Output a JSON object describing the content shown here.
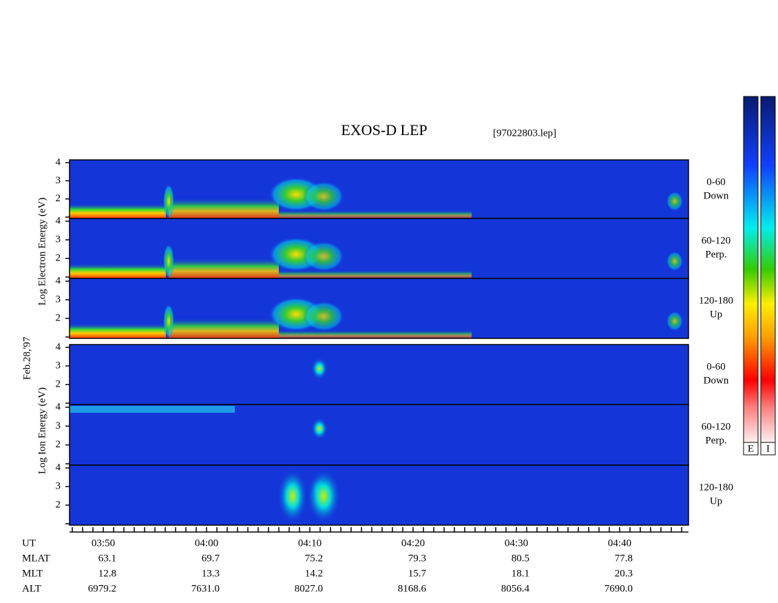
{
  "title": "EXOS-D LEP",
  "file": "[97022803.lep]",
  "electron_label": "Log Electron Energy (eV)",
  "date": "Feb.28,'97",
  "ion_label": "Log Ion Energy (eV)",
  "panels": [
    {
      "group": "electron",
      "lines": [
        "0-60",
        "Down"
      ],
      "ticks": [
        2,
        3,
        4
      ]
    },
    {
      "group": "electron",
      "lines": [
        "60-120",
        "Perp."
      ],
      "ticks": [
        2,
        3,
        4
      ]
    },
    {
      "group": "electron",
      "lines": [
        "120-180",
        "Up"
      ],
      "ticks": [
        2,
        3,
        4
      ]
    },
    {
      "group": "ion",
      "lines": [
        "0-60",
        "Down"
      ],
      "ticks": [
        2,
        3,
        4
      ]
    },
    {
      "group": "ion",
      "lines": [
        "60-120",
        "Perp."
      ],
      "ticks": [
        2,
        3,
        4
      ]
    },
    {
      "group": "ion",
      "lines": [
        "120-180",
        "Up"
      ],
      "ticks": [
        2,
        3,
        4
      ]
    }
  ],
  "colorbars": [
    "E",
    "I"
  ],
  "times": [
    "03:50",
    "04:00",
    "04:10",
    "04:20",
    "04:30",
    "04:40"
  ],
  "rows": [
    {
      "name": "MLAT",
      "values": [
        "63.1",
        "69.7",
        "75.2",
        "79.3",
        "80.5",
        "77.8"
      ]
    },
    {
      "name": "MLT",
      "values": [
        "12.8",
        "13.3",
        "14.2",
        "15.7",
        "18.1",
        "20.3"
      ]
    },
    {
      "name": "ALT",
      "values": [
        "6979.2",
        "7631.0",
        "8027.0",
        "8168.6",
        "8056.4",
        "7690.0"
      ]
    }
  ],
  "time_row": "UT"
}
